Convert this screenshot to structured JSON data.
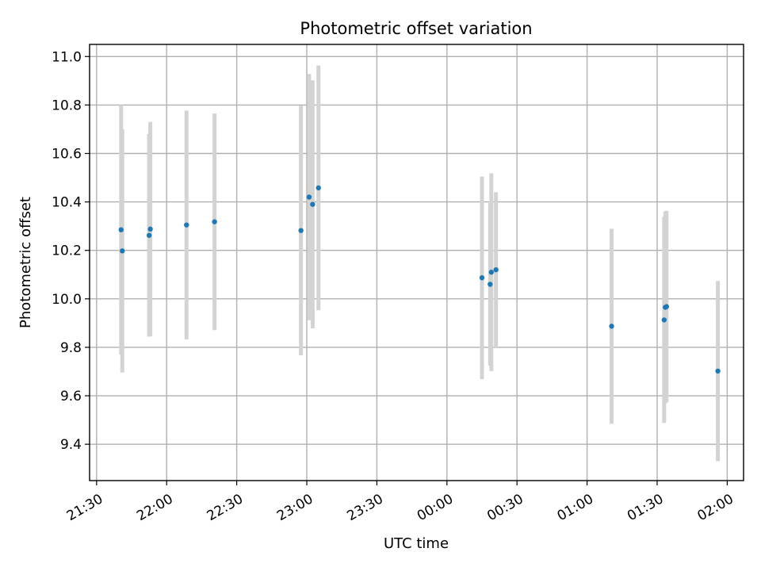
{
  "chart_data": {
    "type": "scatter",
    "title": "Photometric offset variation",
    "xlabel": "UTC time",
    "ylabel": "Photometric offset",
    "x_axis": {
      "range": [
        "21:27",
        "02:07"
      ],
      "ticks": [
        "21:30",
        "22:00",
        "22:30",
        "23:00",
        "23:30",
        "00:00",
        "00:30",
        "01:00",
        "01:30",
        "02:00"
      ]
    },
    "y_axis": {
      "range": [
        9.25,
        11.05
      ],
      "ticks": [
        "9.4",
        "9.6",
        "9.8",
        "10.0",
        "10.2",
        "10.4",
        "10.6",
        "10.8",
        "11.0"
      ]
    },
    "grid": true,
    "colors": {
      "points": "#1f77b4",
      "errorbars": "#d3d3d3",
      "grid": "#b0b0b0"
    },
    "series": [
      {
        "points": [
          {
            "t": "21:40:30",
            "y": 10.285,
            "err": 0.515
          },
          {
            "t": "21:41:00",
            "y": 10.198,
            "err": 0.502
          },
          {
            "t": "21:52:30",
            "y": 10.262,
            "err": 0.418
          },
          {
            "t": "21:53:00",
            "y": 10.288,
            "err": 0.442
          },
          {
            "t": "22:08:30",
            "y": 10.305,
            "err": 0.472
          },
          {
            "t": "22:20:30",
            "y": 10.318,
            "err": 0.447
          },
          {
            "t": "22:57:30",
            "y": 10.282,
            "err": 0.515
          },
          {
            "t": "23:01:00",
            "y": 10.42,
            "err": 0.508
          },
          {
            "t": "23:02:30",
            "y": 10.39,
            "err": 0.512
          },
          {
            "t": "23:05:00",
            "y": 10.458,
            "err": 0.505
          },
          {
            "t": "00:15:00",
            "y": 10.087,
            "err": 0.418
          },
          {
            "t": "00:18:30",
            "y": 10.06,
            "err": 0.335
          },
          {
            "t": "00:19:00",
            "y": 10.11,
            "err": 0.408
          },
          {
            "t": "00:21:00",
            "y": 10.12,
            "err": 0.32
          },
          {
            "t": "01:10:30",
            "y": 9.887,
            "err": 0.402
          },
          {
            "t": "01:33:00",
            "y": 9.913,
            "err": 0.425
          },
          {
            "t": "01:33:30",
            "y": 9.965,
            "err": 0.395
          },
          {
            "t": "01:34:00",
            "y": 9.968,
            "err": 0.395
          },
          {
            "t": "01:56:00",
            "y": 9.702,
            "err": 0.372
          }
        ]
      }
    ]
  }
}
